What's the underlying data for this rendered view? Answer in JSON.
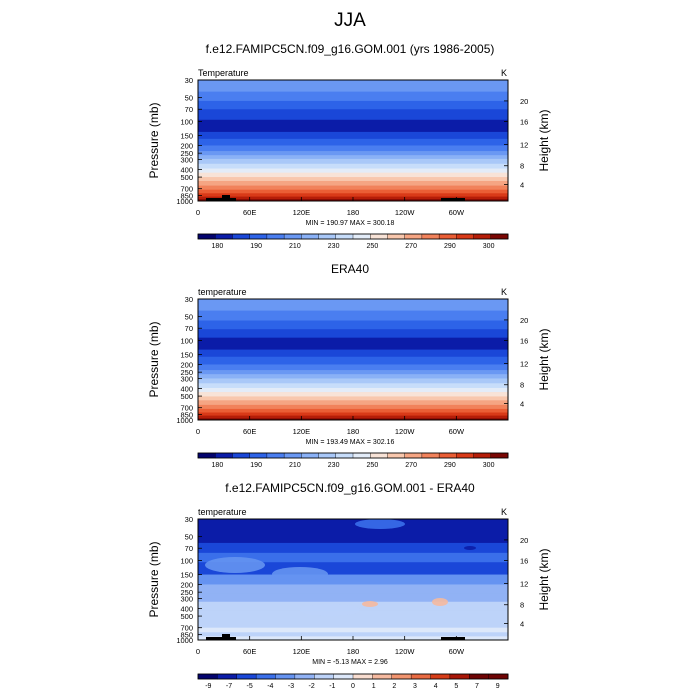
{
  "figure": {
    "title": "JJA"
  },
  "chart_data": [
    {
      "type": "heatmap",
      "title": "f.e12.FAMIPC5CN.f09_g16.GOM.001 (yrs 1986-2005)",
      "variable_label": "Temperature",
      "units": "K",
      "ylabel": "Pressure (mb)",
      "ylabel_right": "Height (km)",
      "x_ticks": [
        "0",
        "60E",
        "120E",
        "180",
        "120W",
        "60W"
      ],
      "y_ticks": [
        "30",
        "50",
        "70",
        "100",
        "150",
        "200",
        "250",
        "300",
        "400",
        "500",
        "700",
        "850",
        "1000"
      ],
      "y_ticks_right": [
        "20",
        "16",
        "12",
        "8",
        "4"
      ],
      "stats": "MIN = 190.97  MAX = 300.18",
      "colorbar_labels": [
        "180",
        "190",
        "210",
        "230",
        "250",
        "270",
        "290",
        "300"
      ],
      "ylim": [
        1000,
        30
      ],
      "xlim": [
        0,
        360
      ]
    },
    {
      "type": "heatmap",
      "title": "ERA40",
      "variable_label": "temperature",
      "units": "K",
      "ylabel": "Pressure (mb)",
      "ylabel_right": "Height (km)",
      "x_ticks": [
        "0",
        "60E",
        "120E",
        "180",
        "120W",
        "60W"
      ],
      "y_ticks": [
        "30",
        "50",
        "70",
        "100",
        "150",
        "200",
        "250",
        "300",
        "400",
        "500",
        "700",
        "850",
        "1000"
      ],
      "y_ticks_right": [
        "20",
        "16",
        "12",
        "8",
        "4"
      ],
      "stats": "MIN = 193.49  MAX = 302.16",
      "colorbar_labels": [
        "180",
        "190",
        "210",
        "230",
        "250",
        "270",
        "290",
        "300"
      ],
      "ylim": [
        1000,
        30
      ],
      "xlim": [
        0,
        360
      ]
    },
    {
      "type": "heatmap",
      "title": "f.e12.FAMIPC5CN.f09_g16.GOM.001 - ERA40",
      "variable_label": "temperature",
      "units": "K",
      "ylabel": "Pressure (mb)",
      "ylabel_right": "Height (km)",
      "x_ticks": [
        "0",
        "60E",
        "120E",
        "180",
        "120W",
        "60W"
      ],
      "y_ticks": [
        "30",
        "50",
        "70",
        "100",
        "150",
        "200",
        "250",
        "300",
        "400",
        "500",
        "700",
        "850",
        "1000"
      ],
      "y_ticks_right": [
        "20",
        "16",
        "12",
        "8",
        "4"
      ],
      "stats": "MIN =  -5.13  MAX =   2.96",
      "colorbar_labels": [
        "-9",
        "-7",
        "-5",
        "-4",
        "-3",
        "-2",
        "-1",
        "0",
        "1",
        "2",
        "3",
        "4",
        "5",
        "7",
        "9"
      ],
      "ylim": [
        1000,
        30
      ],
      "xlim": [
        0,
        360
      ]
    }
  ],
  "colors": {
    "temp_scale": [
      "#04046e",
      "#0b1ca8",
      "#1a47d8",
      "#2d63e8",
      "#4a7ef0",
      "#6a98f3",
      "#8ab1f6",
      "#a9c8f8",
      "#c7ddfa",
      "#e3ecf8",
      "#f8e3d7",
      "#f8c7ad",
      "#f5a583",
      "#f1825b",
      "#ea5e35",
      "#d93a18",
      "#b51d08",
      "#7a0704"
    ],
    "diff_scale": [
      "#04046e",
      "#0b1ca8",
      "#1a47d8",
      "#3a6fea",
      "#6593f1",
      "#91b2f5",
      "#bdd3f9",
      "#dde8fa",
      "#f8ddd0",
      "#f5b99f",
      "#f1946f",
      "#e86a42",
      "#d63d18",
      "#a81607",
      "#6e0404"
    ]
  }
}
